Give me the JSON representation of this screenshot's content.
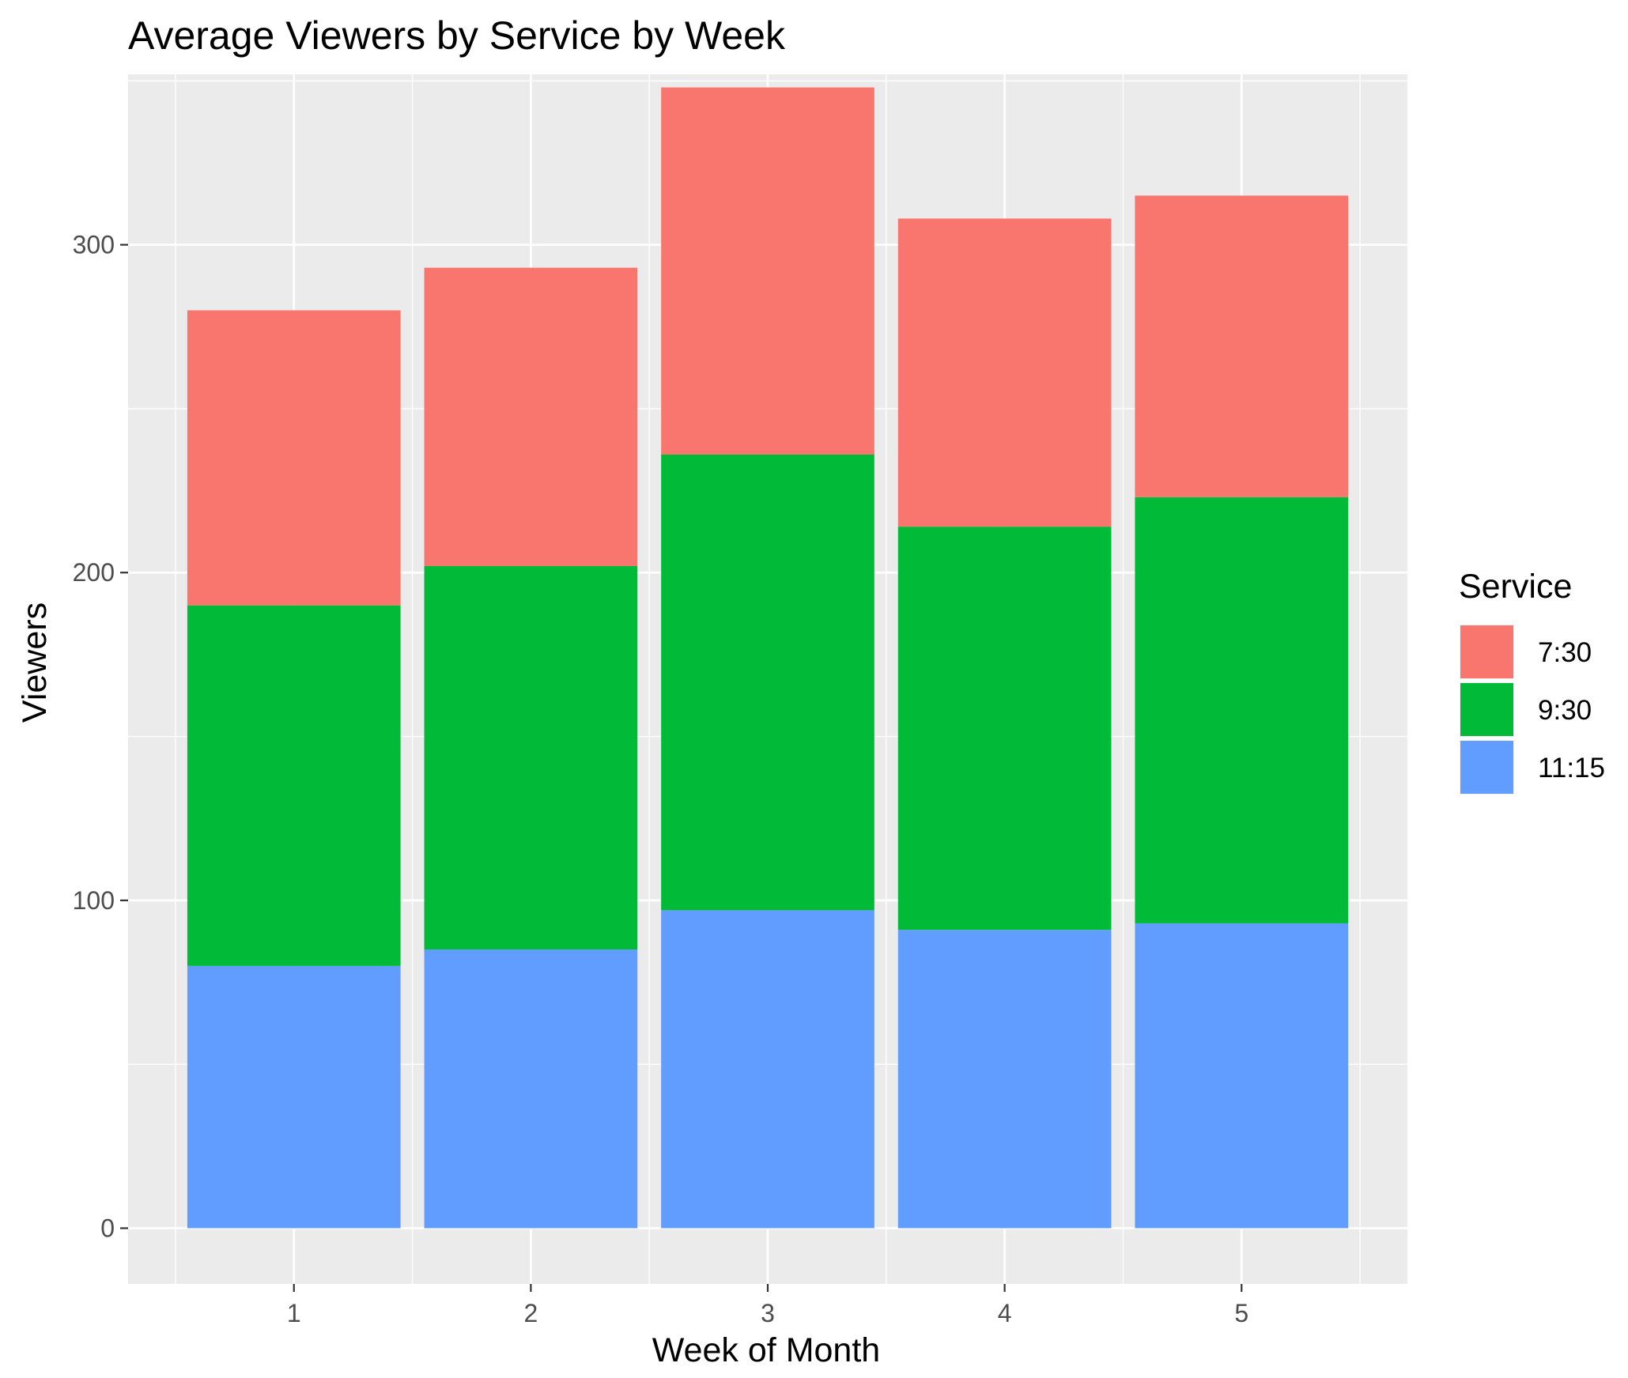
{
  "chart_data": {
    "type": "bar",
    "stacked": true,
    "title": "Average Viewers by Service by Week",
    "xlabel": "Week of Month",
    "ylabel": "Viewers",
    "categories": [
      "1",
      "2",
      "3",
      "4",
      "5"
    ],
    "yticks": [
      0,
      100,
      200,
      300
    ],
    "ylim": [
      -17,
      352
    ],
    "grid": true,
    "legend": {
      "title": "Service",
      "placement": "right"
    },
    "series": [
      {
        "name": "11:15",
        "color": "#619CFF",
        "values": [
          80,
          85,
          97,
          91,
          93
        ]
      },
      {
        "name": "9:30",
        "color": "#00BA38",
        "values": [
          110,
          117,
          139,
          123,
          130
        ]
      },
      {
        "name": "7:30",
        "color": "#F8766D",
        "values": [
          90,
          91,
          112,
          94,
          92
        ]
      }
    ],
    "legend_order": [
      "7:30",
      "9:30",
      "11:15"
    ]
  }
}
